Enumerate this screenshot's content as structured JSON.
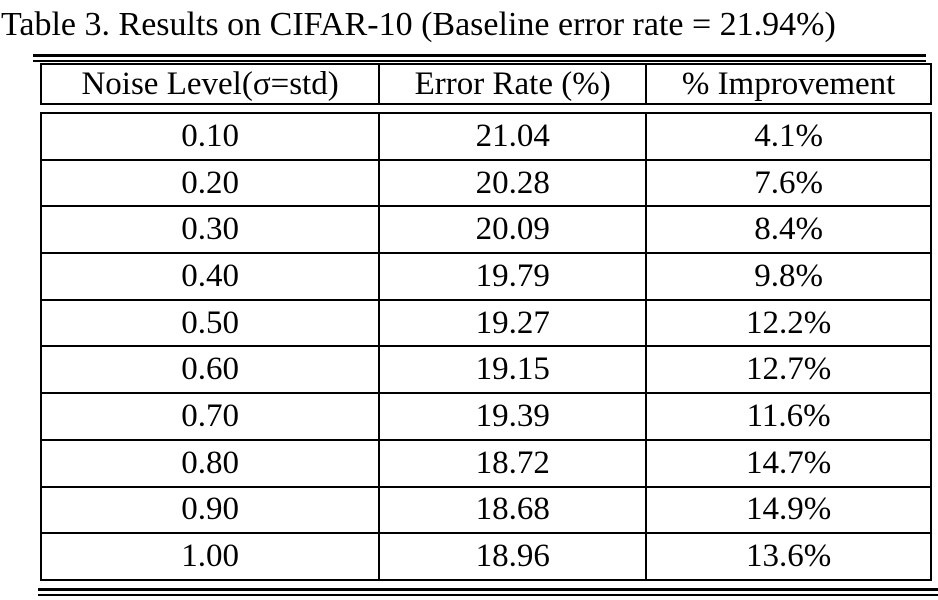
{
  "colors": {
    "text": "#000000",
    "background": "#ffffff",
    "rule": "#000000"
  },
  "table": {
    "caption": "Table 3. Results on CIFAR-10 (Baseline error rate = 21.94%)",
    "baseline_error_rate": "21.94%",
    "columns": [
      "Noise Level(σ=std)",
      "Error Rate (%)",
      "% Improvement"
    ],
    "rows": [
      [
        "0.10",
        "21.04",
        "4.1%"
      ],
      [
        "0.20",
        "20.28",
        "7.6%"
      ],
      [
        "0.30",
        "20.09",
        "8.4%"
      ],
      [
        "0.40",
        "19.79",
        "9.8%"
      ],
      [
        "0.50",
        "19.27",
        "12.2%"
      ],
      [
        "0.60",
        "19.15",
        "12.7%"
      ],
      [
        "0.70",
        "19.39",
        "11.6%"
      ],
      [
        "0.80",
        "18.72",
        "14.7%"
      ],
      [
        "0.90",
        "18.68",
        "14.9%"
      ],
      [
        "1.00",
        "18.96",
        "13.6%"
      ]
    ]
  }
}
